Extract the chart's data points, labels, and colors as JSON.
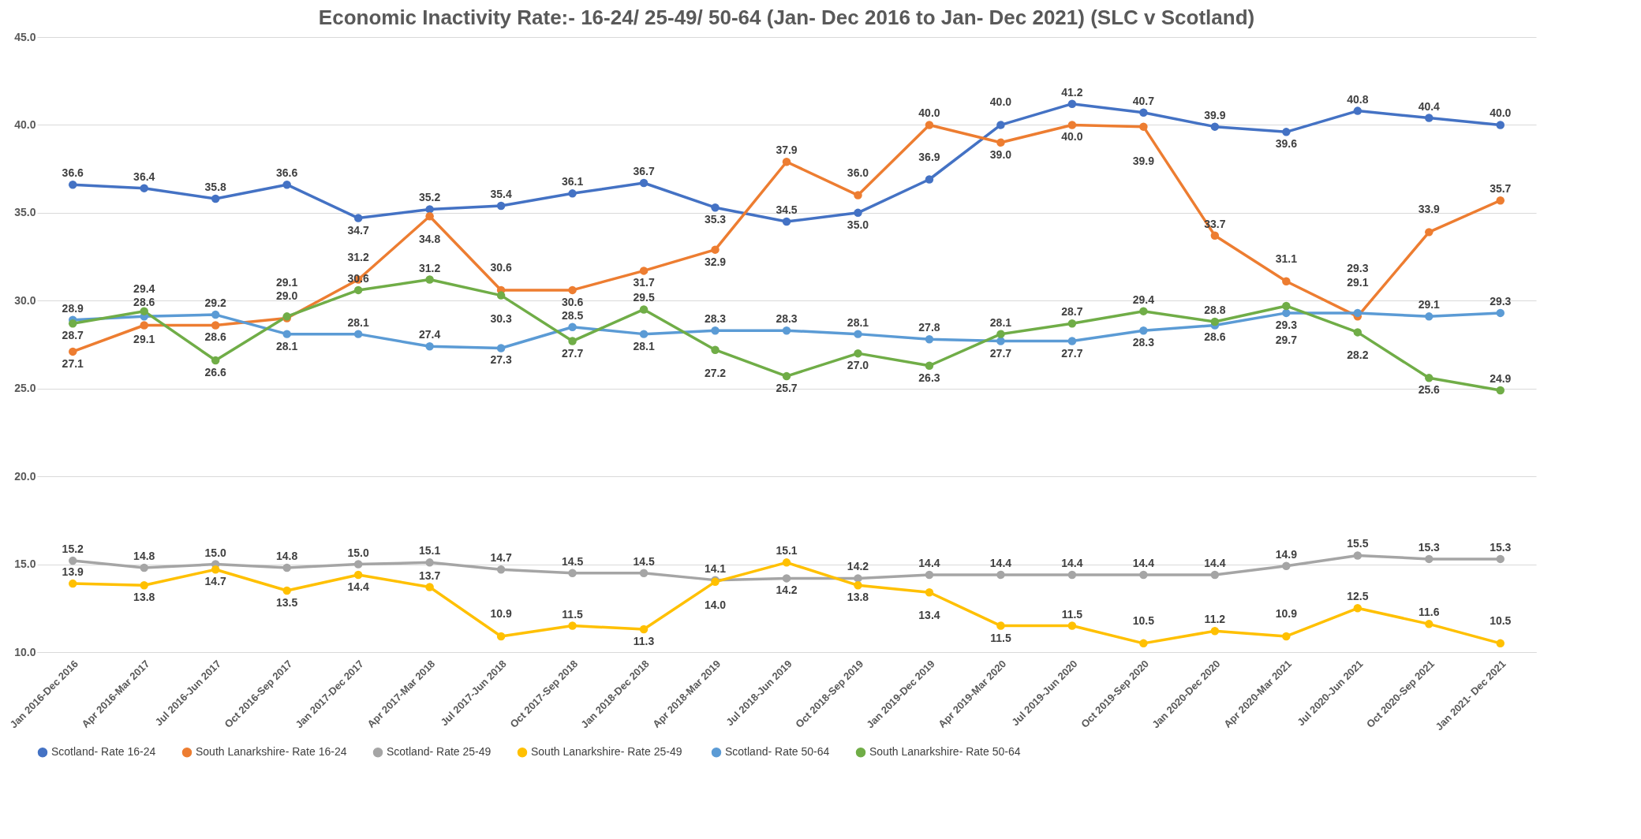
{
  "chart_data": {
    "type": "line",
    "title": "Economic Inactivity Rate:- 16-24/ 25-49/ 50-64 (Jan- Dec 2016 to Jan- Dec 2021) (SLC v Scotland)",
    "categories": [
      "Jan 2016-Dec 2016",
      "Apr 2016-Mar 2017",
      "Jul 2016-Jun 2017",
      "Oct 2016-Sep 2017",
      "Jan 2017-Dec 2017",
      "Apr 2017-Mar 2018",
      "Jul 2017-Jun 2018",
      "Oct 2017-Sep 2018",
      "Jan 2018-Dec 2018",
      "Apr 2018-Mar 2019",
      "Jul 2018-Jun 2019",
      "Oct 2018-Sep 2019",
      "Jan 2019-Dec 2019",
      "Apr 2019-Mar 2020",
      "Jul 2019-Jun 2020",
      "Oct 2019-Sep 2020",
      "Jan 2020-Dec 2020",
      "Apr 2020-Mar 2021",
      "Jul 2020-Jun 2021",
      "Oct 2020-Sep 2021",
      "Jan 2021- Dec 2021"
    ],
    "series": [
      {
        "name": "Scotland- Rate 16-24",
        "color": "#4472c4",
        "values": [
          36.6,
          36.4,
          35.8,
          36.6,
          34.7,
          35.2,
          35.4,
          36.1,
          36.7,
          35.3,
          34.5,
          35.0,
          36.9,
          40.0,
          41.2,
          40.7,
          39.9,
          39.6,
          40.8,
          40.4,
          40.0
        ],
        "value_labels": [
          "36.6",
          "36.4",
          "35.8",
          "36.6",
          "34.7",
          "35.2",
          "35.4",
          "36.1",
          "36.7",
          "35.3",
          "34.5",
          "35.0",
          "36.9",
          "40.0",
          "41.2",
          "40.7",
          "39.9",
          "39.6",
          "40.8",
          "40.4",
          "40.0"
        ]
      },
      {
        "name": "South Lanarkshire- Rate 16-24",
        "color": "#ed7d31",
        "values": [
          27.1,
          28.6,
          28.6,
          29.0,
          31.2,
          34.8,
          30.6,
          30.6,
          31.7,
          32.9,
          37.9,
          36.0,
          40.0,
          39.0,
          40.0,
          39.9,
          33.7,
          31.1,
          29.1,
          33.9,
          35.7
        ],
        "value_labels": [
          "27.1",
          "28.6",
          "28.6",
          "29.0",
          "31.2",
          "34.8",
          "30.6",
          "30.6",
          "31.7",
          "32.9",
          "37.9",
          "36.0",
          "40.0",
          "39.0",
          "40.0",
          "39.9",
          "33.7",
          "31.1",
          "29.1",
          "33.9",
          "35.7"
        ]
      },
      {
        "name": "Scotland- Rate 25-49",
        "color": "#a5a5a5",
        "values": [
          15.2,
          14.8,
          15.0,
          14.8,
          15.0,
          15.1,
          14.7,
          14.5,
          14.5,
          14.1,
          14.2,
          14.2,
          14.4,
          14.4,
          14.4,
          14.4,
          14.4,
          14.9,
          15.5,
          15.3,
          15.3
        ],
        "value_labels": [
          "15.2",
          "14.8",
          "15.0",
          "14.8",
          "15.0",
          "15.1",
          "14.7",
          "14.5",
          "14.5",
          "14.1",
          "14.2",
          "14.2",
          "14.4",
          "14.4",
          "14.4",
          "14.4",
          "14.4",
          "14.9",
          "15.5",
          "15.3",
          "15.3"
        ]
      },
      {
        "name": "South Lanarkshire-  Rate 25-49",
        "color": "#ffc000",
        "values": [
          13.9,
          13.8,
          14.7,
          13.5,
          14.4,
          13.7,
          10.9,
          11.5,
          11.3,
          14.0,
          15.1,
          13.8,
          13.4,
          11.5,
          11.5,
          10.5,
          11.2,
          10.9,
          12.5,
          11.6,
          10.5
        ],
        "value_labels": [
          "13.9",
          "13.8",
          "14.7",
          "13.5",
          "14.4",
          "13.7",
          "10.9",
          "11.5",
          "11.3",
          "14.0",
          "15.1",
          "13.8",
          "13.4",
          "11.5",
          "11.5",
          "10.5",
          "11.2",
          "10.9",
          "12.5",
          "11.6",
          "10.5"
        ]
      },
      {
        "name": "Scotland- Rate 50-64",
        "color": "#5b9bd5",
        "values": [
          28.9,
          29.1,
          29.2,
          28.1,
          28.1,
          27.4,
          27.3,
          28.5,
          28.1,
          28.3,
          28.3,
          28.1,
          27.8,
          27.7,
          27.7,
          28.3,
          28.6,
          29.3,
          29.3,
          29.1,
          29.3
        ],
        "value_labels": [
          "28.9",
          "29.1",
          "29.2",
          "28.1",
          "28.1",
          "27.4",
          "27.3",
          "28.5",
          "28.1",
          "28.3",
          "28.3",
          "28.1",
          "27.8",
          "27.7",
          "27.7",
          "28.3",
          "28.6",
          "29.3",
          "29.3",
          "29.1",
          "29.3"
        ]
      },
      {
        "name": "South Lanarkshire-  Rate 50-64",
        "color": "#70ad47",
        "values": [
          28.7,
          29.4,
          26.6,
          29.1,
          30.6,
          31.2,
          30.3,
          27.7,
          29.5,
          27.2,
          25.7,
          27.0,
          26.3,
          28.1,
          28.7,
          29.4,
          28.8,
          29.7,
          28.2,
          25.6,
          24.9
        ],
        "value_labels": [
          "28.7",
          "29.4",
          "26.6",
          "29.1",
          "30.6",
          "31.2",
          "30.3",
          "27.7",
          "29.5",
          "27.2",
          "25.7",
          "27.0",
          "26.3",
          "28.1",
          "28.7",
          "29.4",
          "28.8",
          "29.7",
          "28.2",
          "25.6",
          "24.9"
        ]
      }
    ],
    "ylim": [
      10,
      45
    ],
    "yticks": [
      {
        "value": 10,
        "label": "10.0"
      },
      {
        "value": 15,
        "label": "15.0"
      },
      {
        "value": 20,
        "label": "20.0"
      },
      {
        "value": 25,
        "label": "25.0"
      },
      {
        "value": 30,
        "label": "30.0"
      },
      {
        "value": 35,
        "label": "35.0"
      },
      {
        "value": 40,
        "label": "40.0"
      },
      {
        "value": 45,
        "label": "45.0"
      }
    ],
    "grid": "y",
    "legend": "bottom",
    "marker": "circle",
    "line_style": "solid"
  }
}
